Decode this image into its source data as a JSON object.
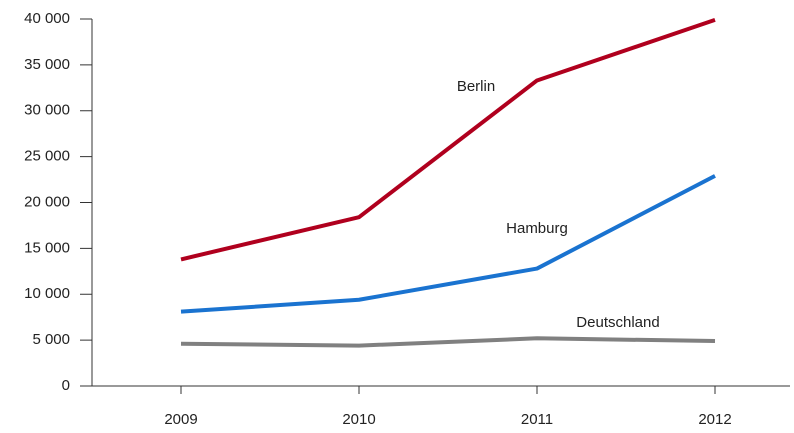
{
  "chart_data": {
    "type": "line",
    "categories": [
      "2009",
      "2010",
      "2011",
      "2012"
    ],
    "series": [
      {
        "name": "Berlin",
        "color": "#b0001e",
        "values": [
          13800,
          18400,
          33300,
          39900
        ]
      },
      {
        "name": "Hamburg",
        "color": "#1a73d0",
        "values": [
          8100,
          9400,
          12800,
          22900
        ]
      },
      {
        "name": "Deutschland",
        "color": "#808080",
        "values": [
          4600,
          4400,
          5200,
          4900
        ]
      }
    ],
    "ylim": [
      0,
      40000
    ],
    "yticks": [
      0,
      {
        "value": 5000,
        "label": "5 000"
      },
      {
        "value": 10000,
        "label": "10 000"
      },
      {
        "value": 15000,
        "label": "15 000"
      },
      {
        "value": 20000,
        "label": "20 000"
      },
      {
        "value": 25000,
        "label": "25 000"
      },
      {
        "value": 30000,
        "label": "30 000"
      },
      {
        "value": 35000,
        "label": "35 000"
      },
      {
        "value": 40000,
        "label": "40 000"
      }
    ],
    "grid": false
  }
}
